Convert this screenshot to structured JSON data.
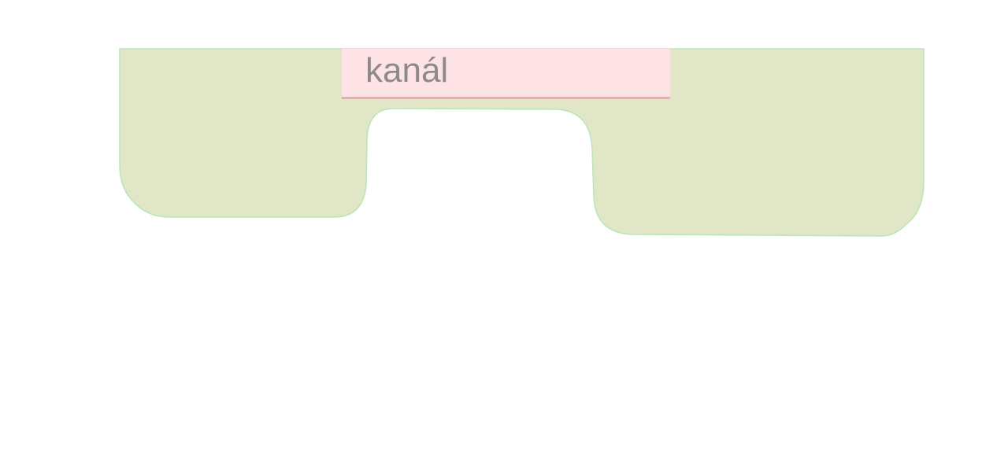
{
  "shape": {
    "fill_color": "#e0e6c6",
    "stroke_color": "#b9e6b8"
  },
  "label": {
    "text": "kanál",
    "background_color": "#fde3e6",
    "underline_color": "#f2a9b0",
    "text_color": "#8f8a8a"
  }
}
